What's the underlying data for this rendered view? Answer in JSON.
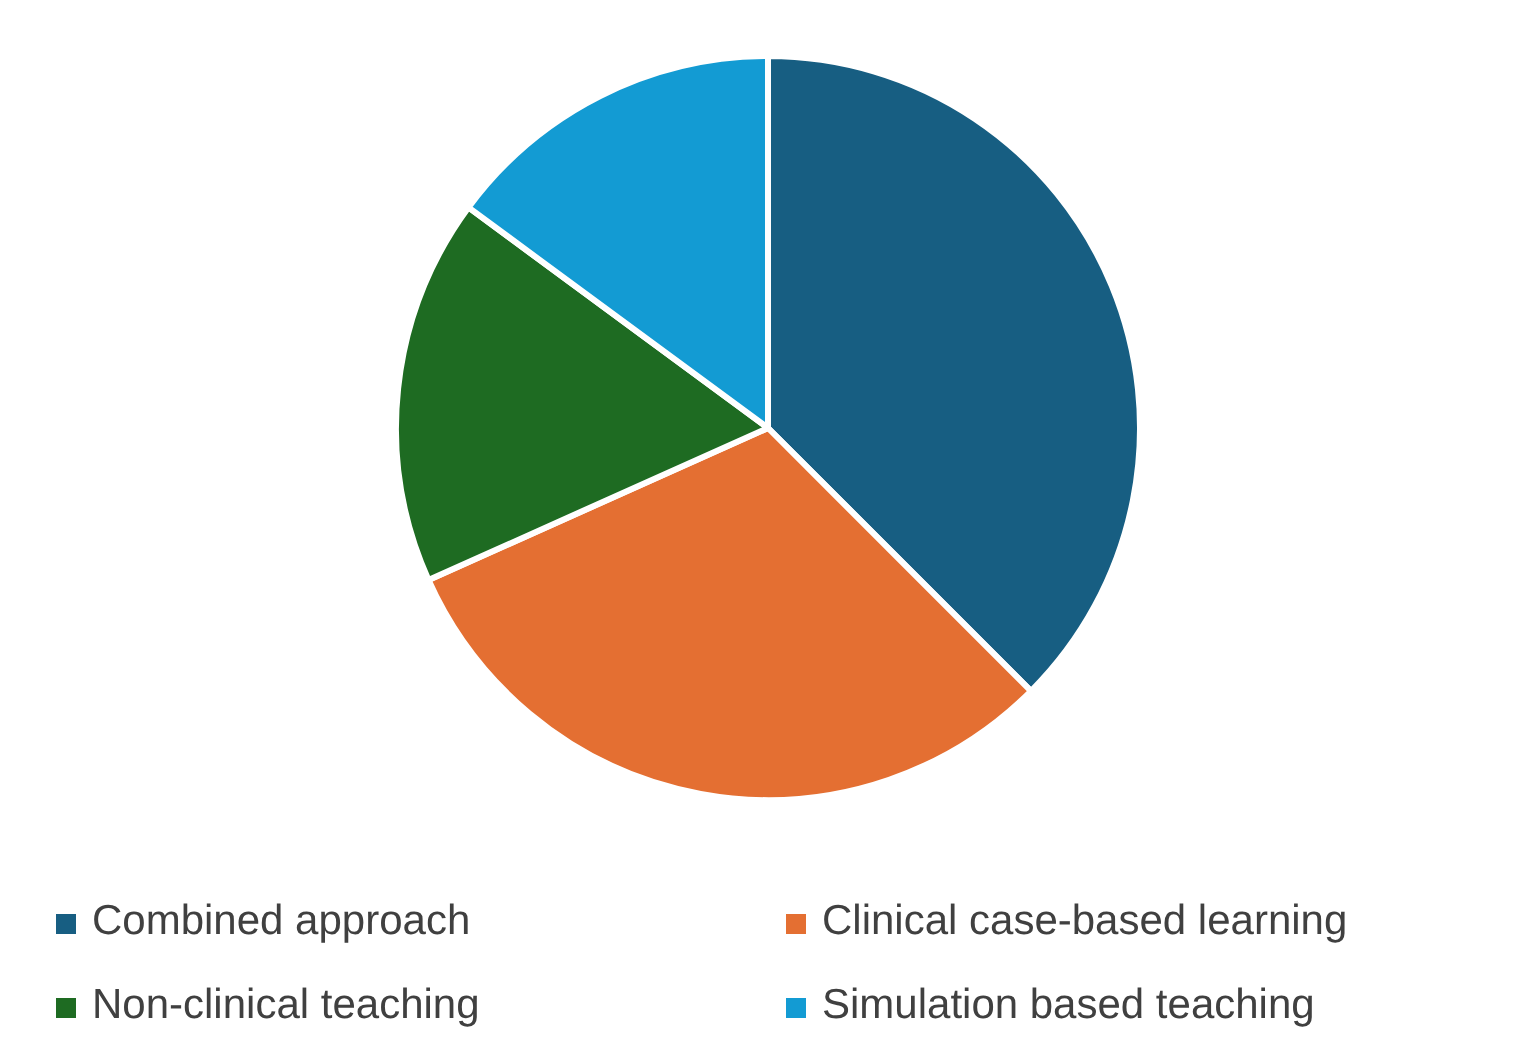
{
  "chart_data": {
    "type": "pie",
    "categories": [
      "Combined approach",
      "Clinical case-based learning",
      "Non-clinical teaching",
      "Simulation based teaching"
    ],
    "values": [
      37.5,
      30.8,
      16.8,
      14.9
    ],
    "colors": [
      "#175e82",
      "#e46f32",
      "#1e6b22",
      "#139bd3"
    ],
    "legend": "bottom"
  }
}
